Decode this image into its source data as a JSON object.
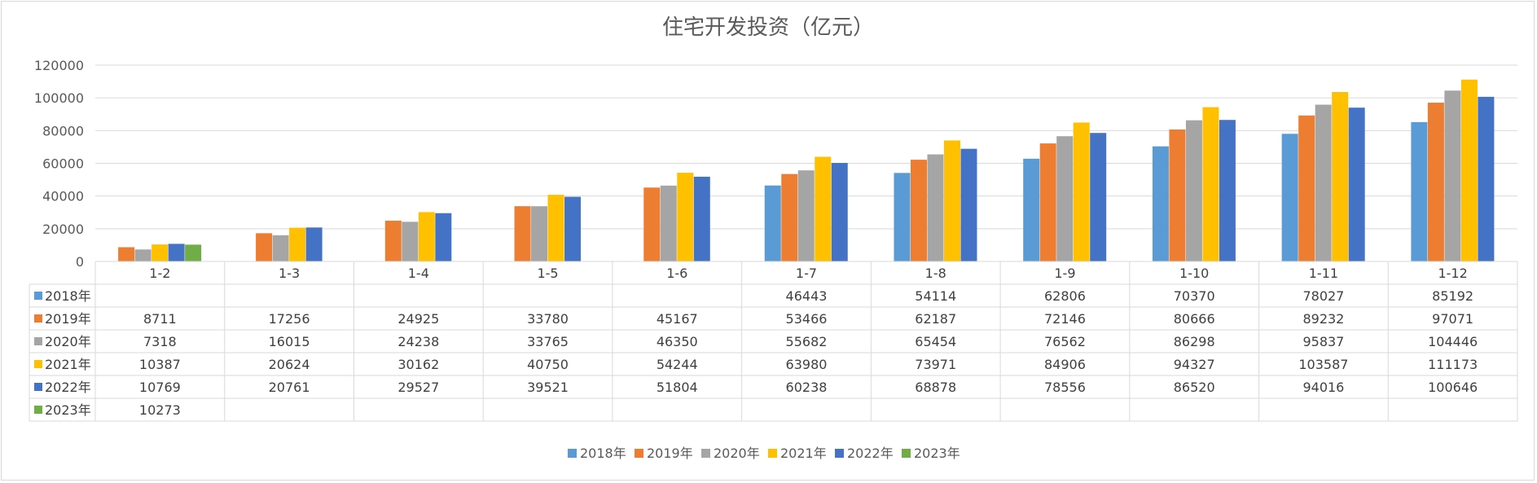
{
  "chart_data": {
    "type": "bar",
    "title": "住宅开发投资（亿元）",
    "xlabel": "",
    "ylabel": "",
    "ylim": [
      0,
      120000
    ],
    "yticks": [
      0,
      20000,
      40000,
      60000,
      80000,
      100000,
      120000
    ],
    "grid": true,
    "legend_position": "bottom",
    "data_table": true,
    "categories": [
      "1-2",
      "1-3",
      "1-4",
      "1-5",
      "1-6",
      "1-7",
      "1-8",
      "1-9",
      "1-10",
      "1-11",
      "1-12"
    ],
    "series": [
      {
        "name": "2018年",
        "color": "#5b9bd5",
        "values": [
          null,
          null,
          null,
          null,
          null,
          46443,
          54114,
          62806,
          70370,
          78027,
          85192
        ]
      },
      {
        "name": "2019年",
        "color": "#ed7d31",
        "values": [
          8711,
          17256,
          24925,
          33780,
          45167,
          53466,
          62187,
          72146,
          80666,
          89232,
          97071
        ]
      },
      {
        "name": "2020年",
        "color": "#a5a5a5",
        "values": [
          7318,
          16015,
          24238,
          33765,
          46350,
          55682,
          65454,
          76562,
          86298,
          95837,
          104446
        ]
      },
      {
        "name": "2021年",
        "color": "#ffc000",
        "values": [
          10387,
          20624,
          30162,
          40750,
          54244,
          63980,
          73971,
          84906,
          94327,
          103587,
          111173
        ]
      },
      {
        "name": "2022年",
        "color": "#4472c4",
        "values": [
          10769,
          20761,
          29527,
          39521,
          51804,
          60238,
          68878,
          78556,
          86520,
          94016,
          100646
        ]
      },
      {
        "name": "2023年",
        "color": "#70ad47",
        "values": [
          10273,
          null,
          null,
          null,
          null,
          null,
          null,
          null,
          null,
          null,
          null
        ]
      }
    ]
  }
}
